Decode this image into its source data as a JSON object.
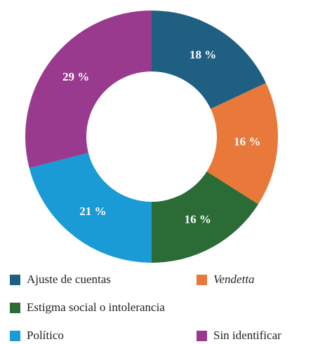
{
  "chart_data": {
    "type": "donut",
    "categories": [
      "Ajuste de cuentas",
      "Vendetta",
      "Estigma social o intolerancia",
      "Político",
      "Sin identificar"
    ],
    "values": [
      18,
      16,
      16,
      21,
      29
    ],
    "value_labels": [
      "18 %",
      "16 %",
      "16 %",
      "21 %",
      "29 %"
    ],
    "colors": [
      "#1f5f82",
      "#e8793a",
      "#2a6b36",
      "#1a9bd6",
      "#993a8e"
    ],
    "italic_categories": [
      "Vendetta"
    ]
  }
}
